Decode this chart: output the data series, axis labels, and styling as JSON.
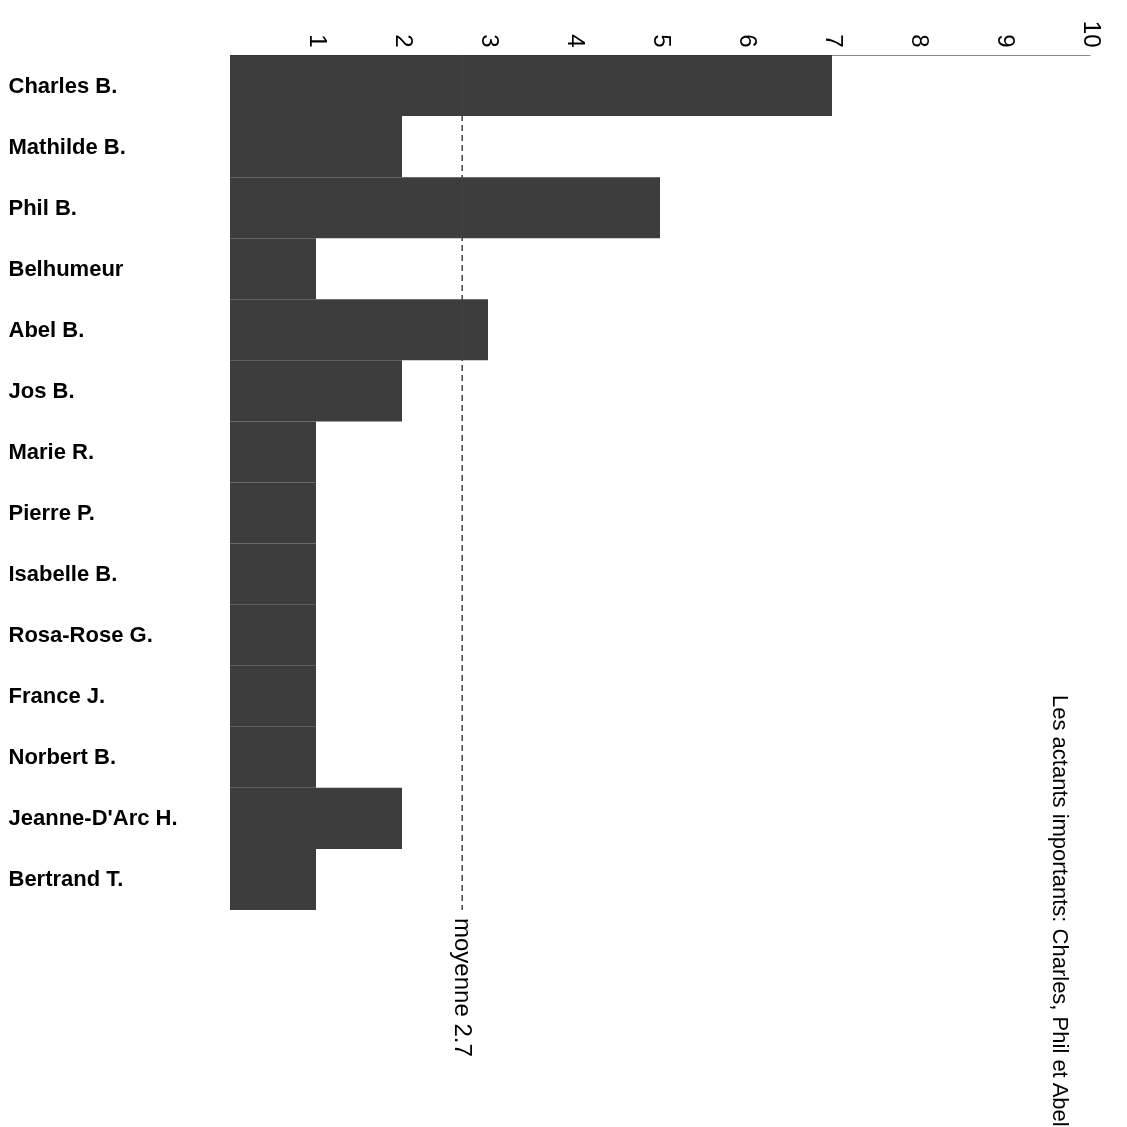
{
  "chart_data": {
    "type": "bar",
    "orientation": "horizontal",
    "categories": [
      "Charles B.",
      "Mathilde B.",
      "Phil B.",
      "Belhumeur",
      "Abel B.",
      "Jos B.",
      "Marie R.",
      "Pierre P.",
      "Isabelle B.",
      "Rosa-Rose G.",
      "France J.",
      "Norbert B.",
      "Jeanne-D'Arc H.",
      "Bertrand T."
    ],
    "values": [
      7,
      2,
      5,
      1,
      3,
      2,
      1,
      1,
      1,
      1,
      1,
      1,
      2,
      1
    ],
    "color": "#333333",
    "xlim": [
      0,
      10
    ],
    "xticks": [
      1,
      2,
      3,
      4,
      5,
      6,
      7,
      8,
      9,
      10
    ],
    "grid": false,
    "ref_lines": [
      {
        "axis": "x",
        "value": 2.7,
        "label": "moyenne 2.7",
        "line_style": "dashed",
        "color": "#444444"
      }
    ],
    "annotations": [
      "Les actants importants: Charles, Phil et Abel"
    ]
  }
}
